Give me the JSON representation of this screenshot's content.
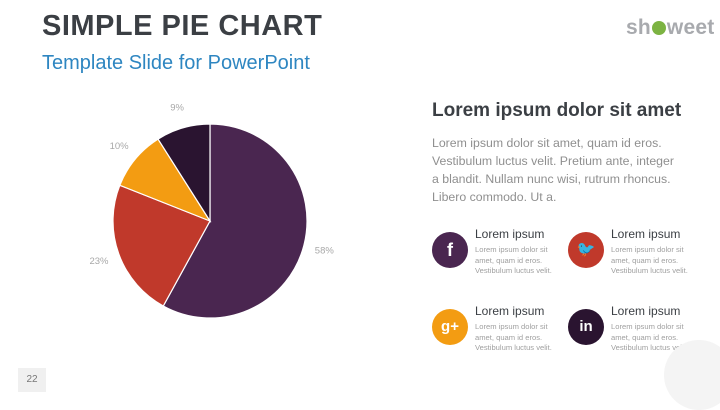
{
  "header": {
    "title": "SIMPLE PIE CHART",
    "subtitle": "Template Slide for PowerPoint",
    "logo_left": "sh",
    "logo_right": "weet"
  },
  "colors": {
    "purple": "#4a2650",
    "red": "#c0392b",
    "orange": "#f39c12",
    "dark": "#2a1430",
    "blue": "#2e86c1"
  },
  "chart_data": {
    "type": "pie",
    "categories": [
      "",
      "",
      "",
      ""
    ],
    "values": [
      58,
      23,
      10,
      9
    ],
    "labels": [
      "58%",
      "23%",
      "10%",
      "9%"
    ],
    "colors": [
      "#4a2650",
      "#c0392b",
      "#f39c12",
      "#2a1430"
    ],
    "start": "top",
    "direction": "clockwise",
    "title": "",
    "legend": "none"
  },
  "text_block": {
    "heading": "Lorem ipsum dolor sit amet",
    "body": "Lorem ipsum dolor sit amet, quam id eros. Vestibulum luctus velit. Pretium ante, integer a blandit. Nullam nunc wisi, rutrum rhoncus. Libero commodo. Ut a."
  },
  "features": [
    {
      "icon": "facebook-icon",
      "glyph": "f",
      "color": "#4a2650",
      "title": "Lorem ipsum",
      "desc": "Lorem ipsum dolor sit amet, quam id eros. Vestibulum luctus velit."
    },
    {
      "icon": "twitter-icon",
      "glyph": "🐦",
      "color": "#c0392b",
      "title": "Lorem ipsum",
      "desc": "Lorem ipsum dolor sit amet, quam id eros. Vestibulum luctus velit."
    },
    {
      "icon": "google-plus-icon",
      "glyph": "g+",
      "color": "#f39c12",
      "title": "Lorem ipsum",
      "desc": "Lorem ipsum dolor sit amet, quam id eros. Vestibulum luctus velit."
    },
    {
      "icon": "linkedin-icon",
      "glyph": "in",
      "color": "#2a1430",
      "title": "Lorem ipsum",
      "desc": "Lorem ipsum dolor sit amet, quam id eros. Vestibulum luctus velit."
    }
  ],
  "footer": {
    "page_number": "22"
  }
}
